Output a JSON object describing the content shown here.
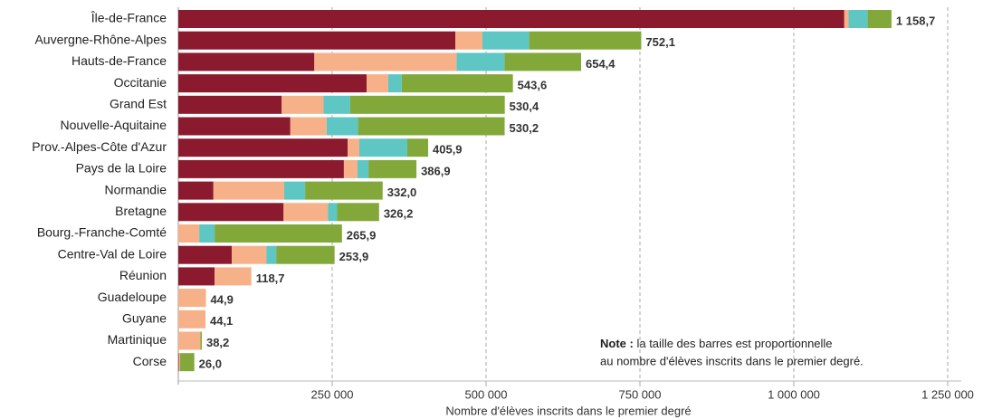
{
  "chart_data": {
    "type": "stacked_barh",
    "categories": [
      "Île-de-France",
      "Auvergne-Rhône-Alpes",
      "Hauts-de-France",
      "Occitanie",
      "Grand Est",
      "Nouvelle-Aquitaine",
      "Prov.-Alpes-Côte d'Azur",
      "Pays de la Loire",
      "Normandie",
      "Bretagne",
      "Bourg.-Franche-Comté",
      "Centre-Val de Loire",
      "Réunion",
      "Guadeloupe",
      "Guyane",
      "Martinique",
      "Corse"
    ],
    "series": [
      {
        "color": "#8b1a2e",
        "values": [
          1082000,
          450000,
          221000,
          306000,
          168000,
          182000,
          275000,
          269000,
          57000,
          171000,
          0,
          87000,
          59000,
          0,
          0,
          0,
          1000
        ]
      },
      {
        "color": "#f7b189",
        "values": [
          7000,
          44000,
          231000,
          35000,
          68000,
          59000,
          19000,
          22000,
          115000,
          72000,
          34000,
          56000,
          59700,
          44900,
          44100,
          36000,
          2000
        ]
      },
      {
        "color": "#5ec6c3",
        "values": [
          31000,
          76000,
          78000,
          22000,
          43000,
          51000,
          78000,
          18000,
          34000,
          15000,
          25000,
          16000,
          0,
          0,
          0,
          0,
          0
        ]
      },
      {
        "color": "#82a83a",
        "values": [
          38700,
          182100,
          124400,
          180600,
          251400,
          238200,
          33900,
          77900,
          126000,
          68200,
          206900,
          94900,
          0,
          0,
          0,
          2200,
          23000
        ]
      }
    ],
    "totals": [
      1158700,
      752100,
      654400,
      543600,
      530400,
      530200,
      405900,
      386900,
      332000,
      326200,
      265900,
      253900,
      118700,
      44900,
      44100,
      38200,
      26000
    ],
    "value_labels": [
      "1 158,7",
      "752,1",
      "654,4",
      "543,6",
      "530,4",
      "530,2",
      "405,9",
      "386,9",
      "332,0",
      "326,2",
      "265,9",
      "253,9",
      "118,7",
      "44,9",
      "44,1",
      "38,2",
      "26,0"
    ],
    "xlim": [
      0,
      1270000
    ],
    "xticks": [
      {
        "value": 250000,
        "label": "250 000"
      },
      {
        "value": 500000,
        "label": "500 000"
      },
      {
        "value": 750000,
        "label": "750 000"
      },
      {
        "value": 1000000,
        "label": "1 000 000"
      },
      {
        "value": 1250000,
        "label": "1 250 000"
      }
    ],
    "x_label": "Nombre d'élèves inscrits dans le premier degré",
    "grid": true,
    "annotation": {
      "label": "Note :",
      "lines": [
        "la taille des barres est proportionnelle",
        "au nombre d'élèves inscrits dans le premier degré."
      ]
    }
  }
}
